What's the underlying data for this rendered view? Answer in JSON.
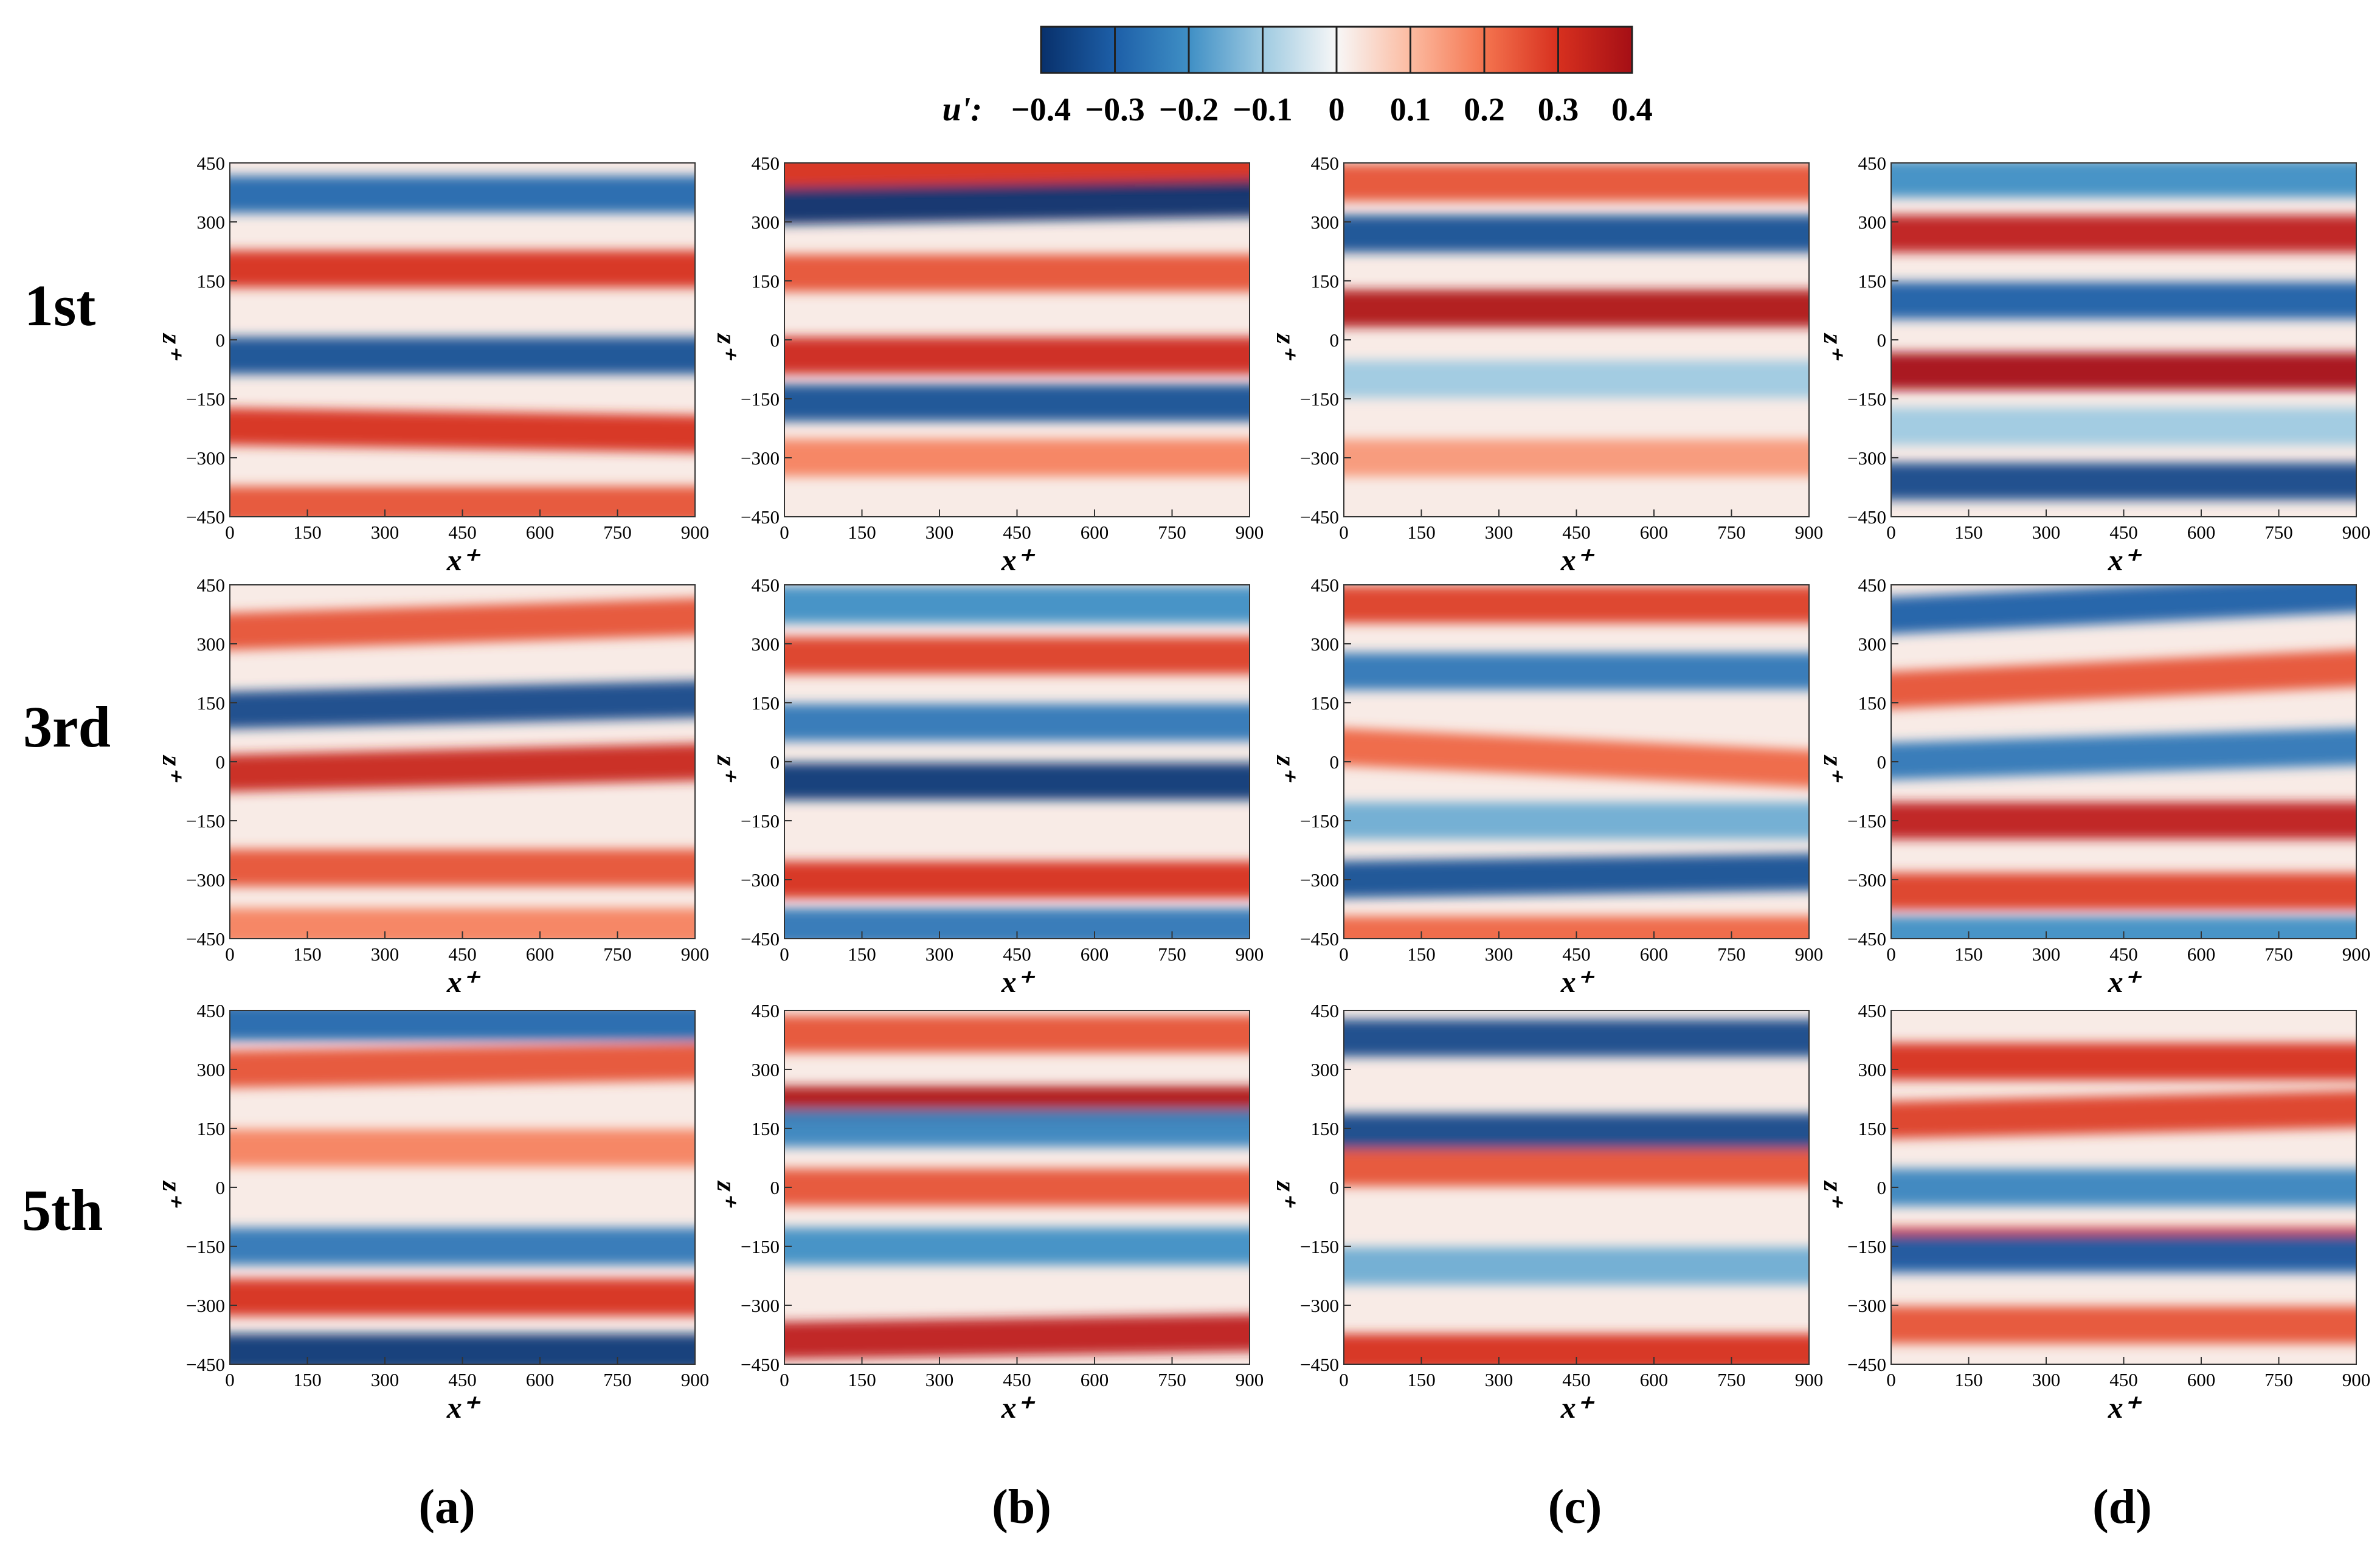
{
  "chart_data": {
    "type": "heatmap",
    "title": "",
    "colorbar": {
      "variable": "u':",
      "ticks": [
        "−0.4",
        "−0.3",
        "−0.2",
        "−0.1",
        "0",
        "0.1",
        "0.2",
        "0.3",
        "0.4"
      ],
      "range": [
        -0.4,
        0.4
      ],
      "colors": [
        "#08306b",
        "#1d5fa8",
        "#3f8fc5",
        "#9ecae1",
        "#f7f7f7",
        "#fcbba1",
        "#f4744f",
        "#d7301f",
        "#a50f15"
      ]
    },
    "xlabel": "x⁺",
    "ylabel": "z⁺",
    "xlim": [
      0,
      900
    ],
    "ylim": [
      -450,
      450
    ],
    "xticks": [
      "0",
      "150",
      "300",
      "450",
      "600",
      "750",
      "900"
    ],
    "yticks": [
      "450",
      "300",
      "150",
      "0",
      "−150",
      "−300",
      "−450"
    ],
    "row_labels": [
      "1st",
      "3rd",
      "5th"
    ],
    "column_labels": [
      "(a)",
      "(b)",
      "(c)",
      "(d)"
    ],
    "panels": [
      {
        "row": "1st",
        "column": "(a)",
        "streaks": [
          {
            "z": 370,
            "u": -0.28,
            "slope": 0
          },
          {
            "z": 180,
            "u": 0.3,
            "slope": 0
          },
          {
            "z": -40,
            "u": -0.33,
            "slope": 0
          },
          {
            "z": -220,
            "u": 0.3,
            "slope": -20
          },
          {
            "z": -420,
            "u": 0.25,
            "slope": 0
          }
        ]
      },
      {
        "row": "1st",
        "column": "(b)",
        "streaks": [
          {
            "z": 430,
            "u": 0.3,
            "slope": 0
          },
          {
            "z": 340,
            "u": -0.4,
            "slope": 20
          },
          {
            "z": 170,
            "u": 0.25,
            "slope": 0
          },
          {
            "z": -40,
            "u": 0.32,
            "slope": 0
          },
          {
            "z": -160,
            "u": -0.33,
            "slope": 0
          },
          {
            "z": -300,
            "u": 0.18,
            "slope": 0
          }
        ]
      },
      {
        "row": "1st",
        "column": "(c)",
        "streaks": [
          {
            "z": 400,
            "u": 0.25,
            "slope": 0
          },
          {
            "z": 270,
            "u": -0.33,
            "slope": 0
          },
          {
            "z": 80,
            "u": 0.38,
            "slope": 0
          },
          {
            "z": -100,
            "u": -0.1,
            "slope": 0
          },
          {
            "z": -300,
            "u": 0.15,
            "slope": 0
          }
        ]
      },
      {
        "row": "1st",
        "column": "(d)",
        "streaks": [
          {
            "z": 410,
            "u": -0.2,
            "slope": 0
          },
          {
            "z": 270,
            "u": 0.35,
            "slope": 0
          },
          {
            "z": 100,
            "u": -0.3,
            "slope": 0
          },
          {
            "z": -80,
            "u": 0.4,
            "slope": 0
          },
          {
            "z": -220,
            "u": -0.1,
            "slope": 0
          },
          {
            "z": -360,
            "u": -0.35,
            "slope": 0
          }
        ]
      },
      {
        "row": "3rd",
        "column": "(a)",
        "streaks": [
          {
            "z": 330,
            "u": 0.25,
            "slope": 40
          },
          {
            "z": 130,
            "u": -0.35,
            "slope": 30
          },
          {
            "z": -30,
            "u": 0.33,
            "slope": 30
          },
          {
            "z": -270,
            "u": 0.25,
            "slope": 0
          },
          {
            "z": -420,
            "u": 0.18,
            "slope": 0
          }
        ]
      },
      {
        "row": "3rd",
        "column": "(b)",
        "streaks": [
          {
            "z": 400,
            "u": -0.2,
            "slope": 0
          },
          {
            "z": 270,
            "u": 0.28,
            "slope": 0
          },
          {
            "z": 100,
            "u": -0.25,
            "slope": 0
          },
          {
            "z": -50,
            "u": -0.38,
            "slope": 0
          },
          {
            "z": -300,
            "u": 0.3,
            "slope": 0
          },
          {
            "z": -420,
            "u": -0.25,
            "slope": 0
          }
        ]
      },
      {
        "row": "3rd",
        "column": "(c)",
        "streaks": [
          {
            "z": 400,
            "u": 0.28,
            "slope": 0
          },
          {
            "z": 230,
            "u": -0.25,
            "slope": 0
          },
          {
            "z": 40,
            "u": 0.22,
            "slope": -60
          },
          {
            "z": -150,
            "u": -0.15,
            "slope": 0
          },
          {
            "z": -300,
            "u": -0.33,
            "slope": 20
          },
          {
            "z": -440,
            "u": 0.22,
            "slope": 0
          }
        ]
      },
      {
        "row": "3rd",
        "column": "(d)",
        "streaks": [
          {
            "z": 370,
            "u": -0.3,
            "slope": 60
          },
          {
            "z": 180,
            "u": 0.25,
            "slope": 60
          },
          {
            "z": 0,
            "u": -0.25,
            "slope": 40
          },
          {
            "z": -150,
            "u": 0.35,
            "slope": 0
          },
          {
            "z": -330,
            "u": 0.28,
            "slope": 0
          },
          {
            "z": -440,
            "u": -0.2,
            "slope": 0
          }
        ]
      },
      {
        "row": "5th",
        "column": "(a)",
        "streaks": [
          {
            "z": 420,
            "u": -0.28,
            "slope": 0
          },
          {
            "z": 300,
            "u": 0.25,
            "slope": 20
          },
          {
            "z": 100,
            "u": 0.18,
            "slope": 0
          },
          {
            "z": -150,
            "u": -0.25,
            "slope": 0
          },
          {
            "z": -280,
            "u": 0.3,
            "slope": 0
          },
          {
            "z": -420,
            "u": -0.38,
            "slope": 0
          }
        ]
      },
      {
        "row": "5th",
        "column": "(b)",
        "streaks": [
          {
            "z": 390,
            "u": 0.25,
            "slope": 0
          },
          {
            "z": 210,
            "u": 0.38,
            "slope": 0
          },
          {
            "z": 150,
            "u": -0.22,
            "slope": 0
          },
          {
            "z": 0,
            "u": 0.25,
            "slope": 0
          },
          {
            "z": -150,
            "u": -0.2,
            "slope": 0
          },
          {
            "z": -390,
            "u": 0.35,
            "slope": 20
          }
        ]
      },
      {
        "row": "5th",
        "column": "(c)",
        "streaks": [
          {
            "z": 380,
            "u": -0.35,
            "slope": 0
          },
          {
            "z": 140,
            "u": -0.35,
            "slope": 0
          },
          {
            "z": 50,
            "u": 0.25,
            "slope": 0
          },
          {
            "z": -200,
            "u": -0.15,
            "slope": 0
          },
          {
            "z": -420,
            "u": 0.3,
            "slope": 0
          }
        ]
      },
      {
        "row": "5th",
        "column": "(d)",
        "streaks": [
          {
            "z": 320,
            "u": 0.3,
            "slope": 0
          },
          {
            "z": 170,
            "u": 0.28,
            "slope": 30
          },
          {
            "z": 0,
            "u": -0.22,
            "slope": 0
          },
          {
            "z": -150,
            "u": 0.33,
            "slope": 0
          },
          {
            "z": -170,
            "u": -0.3,
            "slope": 0
          },
          {
            "z": -350,
            "u": 0.25,
            "slope": 0
          }
        ]
      }
    ]
  }
}
